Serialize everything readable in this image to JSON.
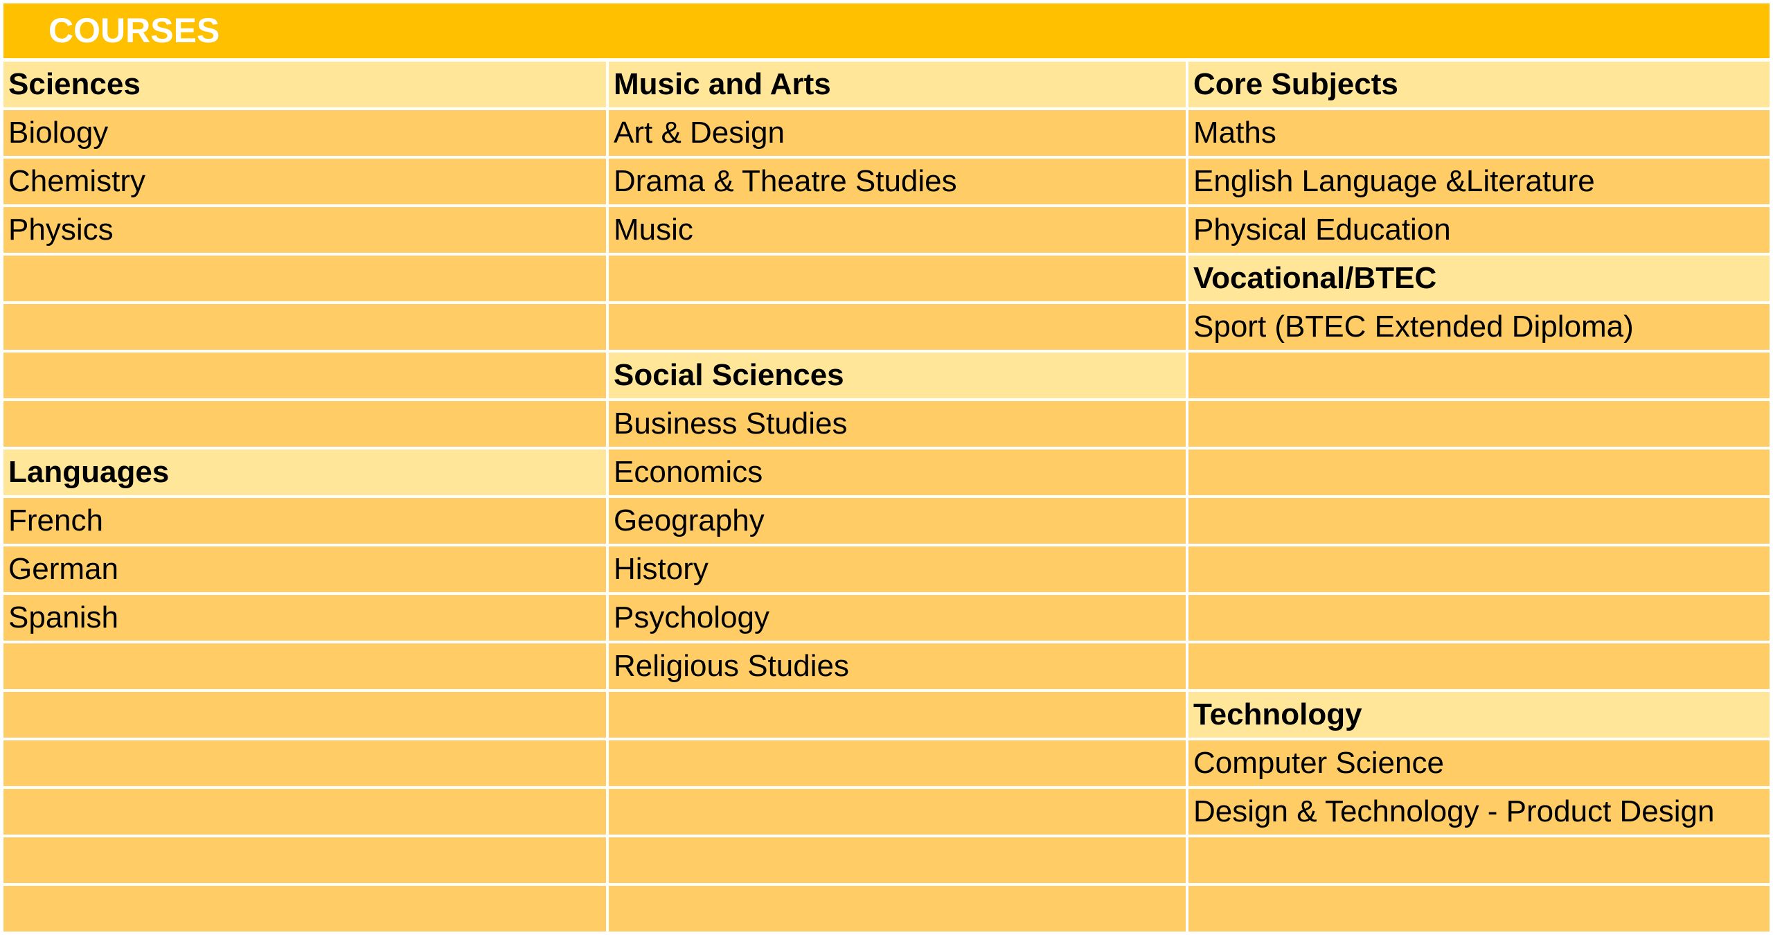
{
  "title": "COURSES",
  "columns": [
    [
      {
        "text": "Sciences",
        "header": true
      },
      {
        "text": "Biology"
      },
      {
        "text": "Chemistry"
      },
      {
        "text": "Physics"
      },
      {
        "text": ""
      },
      {
        "text": ""
      },
      {
        "text": ""
      },
      {
        "text": ""
      },
      {
        "text": "Languages",
        "header": true
      },
      {
        "text": "French"
      },
      {
        "text": "German"
      },
      {
        "text": "Spanish"
      },
      {
        "text": ""
      },
      {
        "text": ""
      },
      {
        "text": ""
      },
      {
        "text": ""
      },
      {
        "text": ""
      },
      {
        "text": ""
      }
    ],
    [
      {
        "text": "Music and Arts",
        "header": true
      },
      {
        "text": "Art & Design"
      },
      {
        "text": "Drama & Theatre Studies"
      },
      {
        "text": "Music"
      },
      {
        "text": ""
      },
      {
        "text": ""
      },
      {
        "text": "Social Sciences",
        "header": true
      },
      {
        "text": "Business Studies"
      },
      {
        "text": "Economics"
      },
      {
        "text": "Geography"
      },
      {
        "text": "History"
      },
      {
        "text": "Psychology"
      },
      {
        "text": "Religious Studies"
      },
      {
        "text": ""
      },
      {
        "text": ""
      },
      {
        "text": ""
      },
      {
        "text": ""
      },
      {
        "text": ""
      }
    ],
    [
      {
        "text": "Core Subjects",
        "header": true
      },
      {
        "text": "Maths"
      },
      {
        "text": "English Language &Literature"
      },
      {
        "text": "Physical Education"
      },
      {
        "text": "Vocational/BTEC",
        "header": true
      },
      {
        "text": "Sport (BTEC Extended Diploma)"
      },
      {
        "text": ""
      },
      {
        "text": ""
      },
      {
        "text": ""
      },
      {
        "text": ""
      },
      {
        "text": ""
      },
      {
        "text": ""
      },
      {
        "text": ""
      },
      {
        "text": "Technology",
        "header": true
      },
      {
        "text": "Computer Science"
      },
      {
        "text": "Design & Technology - Product Design"
      },
      {
        "text": ""
      },
      {
        "text": ""
      }
    ]
  ]
}
